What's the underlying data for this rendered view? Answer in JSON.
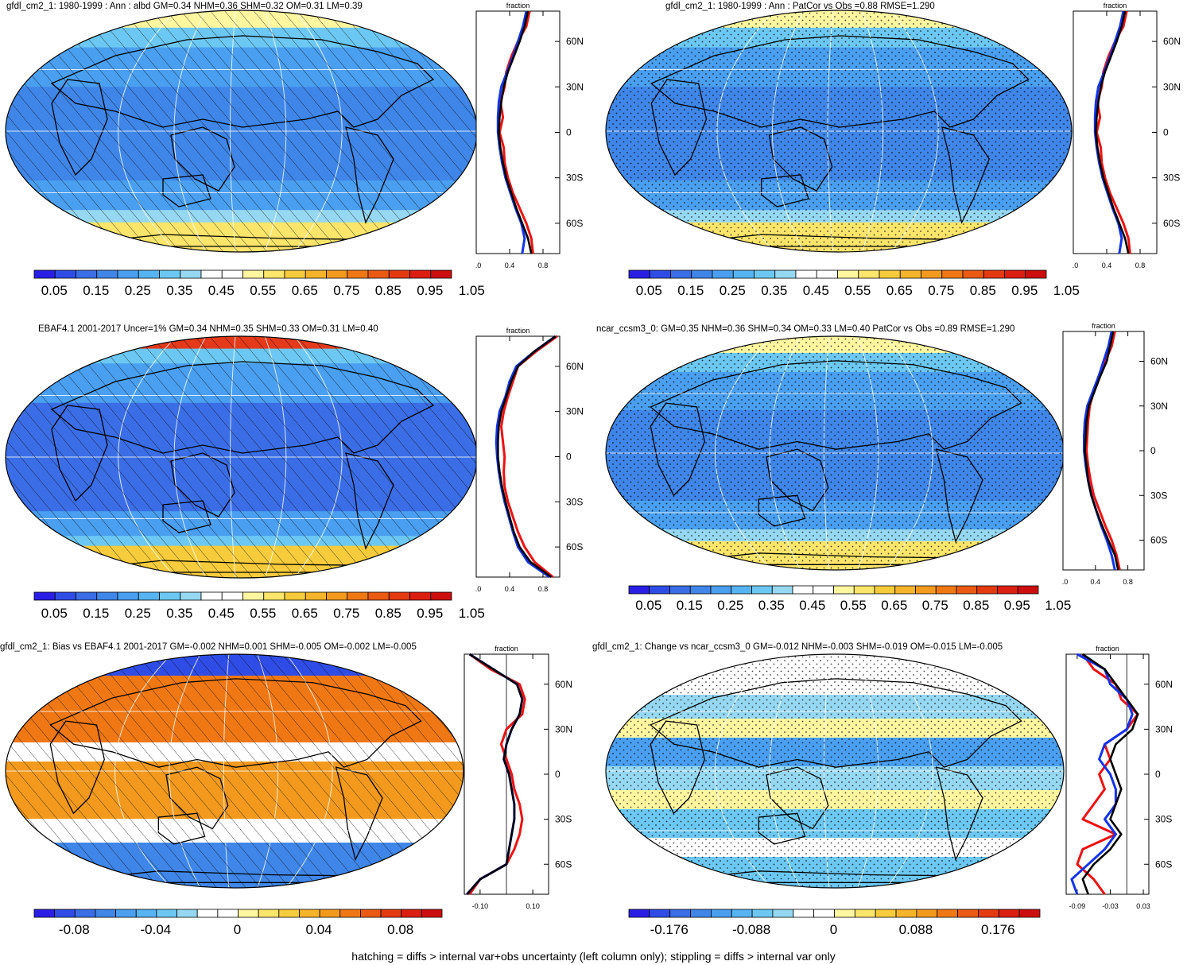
{
  "panels": [
    {
      "id": "p1",
      "title": "gfdl_cm2_1: 1980-1999 : Ann : albd GM=0.34 NHM=0.36 SHM=0.32 OM=0.31 LM=0.39",
      "pattern": "hatch",
      "scheme": "abs",
      "colorbar": [
        "0.05",
        "0.15",
        "0.25",
        "0.35",
        "0.45",
        "0.55",
        "0.65",
        "0.75",
        "0.85",
        "0.95",
        "1.05"
      ],
      "profile_title": "fraction",
      "profile_xticks": [
        "0.0",
        "0.4",
        "0.8"
      ],
      "lat_ticks": [
        "60N",
        "30N",
        "0",
        "30S",
        "60S"
      ]
    },
    {
      "id": "p2",
      "title": "gfdl_cm2_1: 1980-1999 : Ann : PatCor vs Obs =0.88 RMSE=1.290",
      "pattern": "stipple",
      "scheme": "abs",
      "colorbar": [
        "0.05",
        "0.15",
        "0.25",
        "0.35",
        "0.45",
        "0.55",
        "0.65",
        "0.75",
        "0.85",
        "0.95",
        "1.05"
      ],
      "profile_title": "fraction",
      "profile_xticks": [
        "0.0",
        "0.4",
        "0.8"
      ],
      "lat_ticks": [
        "60N",
        "30N",
        "0",
        "30S",
        "60S"
      ]
    },
    {
      "id": "p3",
      "title": "EBAF4.1 2001-2017 Uncer=1% GM=0.34 NHM=0.35 SHM=0.33 OM=0.31 LM=0.40",
      "pattern": "hatch",
      "scheme": "abs",
      "colorbar": [
        "0.05",
        "0.15",
        "0.25",
        "0.35",
        "0.45",
        "0.55",
        "0.65",
        "0.75",
        "0.85",
        "0.95",
        "1.05"
      ],
      "profile_title": "fraction",
      "profile_xticks": [
        "0.0",
        "0.4",
        "0.8"
      ],
      "lat_ticks": [
        "60N",
        "30N",
        "0",
        "30S",
        "60S"
      ]
    },
    {
      "id": "p4",
      "title": "ncar_ccsm3_0: GM=0.35 NHM=0.36 SHM=0.34 OM=0.33 LM=0.40 PatCor vs Obs =0.89 RMSE=1.290",
      "pattern": "stipple",
      "scheme": "abs",
      "colorbar": [
        "0.05",
        "0.15",
        "0.25",
        "0.35",
        "0.45",
        "0.55",
        "0.65",
        "0.75",
        "0.85",
        "0.95",
        "1.05"
      ],
      "profile_title": "fraction",
      "profile_xticks": [
        "0.0",
        "0.4",
        "0.8"
      ],
      "lat_ticks": [
        "60N",
        "30N",
        "0",
        "30S",
        "60S"
      ]
    },
    {
      "id": "p5",
      "title": "gfdl_cm2_1: Bias vs EBAF4.1 2001-2017 GM=-0.002 NHM=0.001 SHM=-0.005 OM=-0.002 LM=-0.005",
      "pattern": "hatch",
      "scheme": "bias",
      "colorbar": [
        "-0.08",
        "-0.04",
        "0",
        "0.04",
        "0.08"
      ],
      "profile_title": "fraction",
      "profile_xticks": [
        "-0.10",
        "0.10"
      ],
      "lat_ticks": [
        "60N",
        "30N",
        "0",
        "30S",
        "60S"
      ]
    },
    {
      "id": "p6",
      "title": "gfdl_cm2_1: Change vs ncar_ccsm3_0 GM=-0.012 NHM=-0.003 SHM=-0.019 OM=-0.015 LM=-0.005",
      "pattern": "stipple",
      "scheme": "change",
      "colorbar": [
        "-0.176",
        "-0.088",
        "0",
        "0.088",
        "0.176"
      ],
      "profile_title": "fraction",
      "profile_xticks": [
        "-0.09",
        "-0.03",
        "0.03"
      ],
      "lat_ticks": [
        "60N",
        "30N",
        "0",
        "30S",
        "60S"
      ]
    }
  ],
  "palettes": {
    "abs": [
      "#2a1ee6",
      "#2f4de6",
      "#3b6ee6",
      "#3f86e8",
      "#4a9ff0",
      "#56b4f2",
      "#6cc8f2",
      "#96d8f2",
      "#ffffff",
      "#ffffff",
      "#fff7a0",
      "#fbe56a",
      "#f7cc3c",
      "#f5b42a",
      "#f39a1e",
      "#f07814",
      "#ea5a12",
      "#e43a10",
      "#dc1e10",
      "#cc0e0e"
    ],
    "bias": [
      "#2a1ee6",
      "#2f4de6",
      "#3b6ee6",
      "#3f86e8",
      "#4a9ff0",
      "#56b4f2",
      "#6cc8f2",
      "#96d8f2",
      "#ffffff",
      "#ffffff",
      "#fff7a0",
      "#fbe56a",
      "#f7cc3c",
      "#f5b42a",
      "#f39a1e",
      "#f07814",
      "#ea5a12",
      "#e43a10",
      "#dc1e10",
      "#cc0e0e"
    ],
    "change": [
      "#2a1ee6",
      "#2f4de6",
      "#3b6ee6",
      "#3f86e8",
      "#4a9ff0",
      "#56b4f2",
      "#6cc8f2",
      "#96d8f2",
      "#ffffff",
      "#ffffff",
      "#fff7a0",
      "#fbe56a",
      "#f7cc3c",
      "#f5b42a",
      "#f39a1e",
      "#f07814",
      "#ea5a12",
      "#e43a10",
      "#dc1e10",
      "#cc0e0e"
    ]
  },
  "profile_series": {
    "lats": [
      80,
      70,
      60,
      50,
      40,
      30,
      20,
      10,
      0,
      -10,
      -20,
      -30,
      -40,
      -50,
      -60,
      -70,
      -80
    ],
    "p1": {
      "black": [
        0.62,
        0.58,
        0.52,
        0.45,
        0.38,
        0.33,
        0.3,
        0.28,
        0.27,
        0.29,
        0.32,
        0.36,
        0.42,
        0.48,
        0.55,
        0.62,
        0.66
      ],
      "red": [
        0.64,
        0.6,
        0.5,
        0.42,
        0.36,
        0.34,
        0.29,
        0.32,
        0.28,
        0.33,
        0.34,
        0.38,
        0.44,
        0.52,
        0.6,
        0.66,
        0.68
      ],
      "blue": [
        0.6,
        0.56,
        0.5,
        0.44,
        0.37,
        0.3,
        0.27,
        0.26,
        0.26,
        0.28,
        0.31,
        0.35,
        0.41,
        0.47,
        0.54,
        0.58,
        0.55
      ]
    },
    "p2": {
      "black": [
        0.62,
        0.58,
        0.52,
        0.45,
        0.38,
        0.33,
        0.3,
        0.28,
        0.27,
        0.29,
        0.32,
        0.36,
        0.42,
        0.48,
        0.55,
        0.62,
        0.66
      ],
      "red": [
        0.64,
        0.6,
        0.5,
        0.42,
        0.36,
        0.34,
        0.29,
        0.32,
        0.28,
        0.33,
        0.34,
        0.38,
        0.44,
        0.52,
        0.6,
        0.66,
        0.68
      ],
      "blue": [
        0.6,
        0.56,
        0.5,
        0.44,
        0.37,
        0.3,
        0.27,
        0.26,
        0.26,
        0.28,
        0.31,
        0.35,
        0.41,
        0.47,
        0.54,
        0.58,
        0.55
      ]
    },
    "p3": {
      "black": [
        0.95,
        0.7,
        0.5,
        0.42,
        0.36,
        0.3,
        0.27,
        0.26,
        0.26,
        0.28,
        0.31,
        0.35,
        0.4,
        0.45,
        0.52,
        0.65,
        0.9
      ],
      "red": [
        0.97,
        0.72,
        0.5,
        0.44,
        0.38,
        0.33,
        0.3,
        0.32,
        0.34,
        0.33,
        0.34,
        0.38,
        0.44,
        0.5,
        0.58,
        0.7,
        0.92
      ],
      "blue": [
        0.95,
        0.7,
        0.48,
        0.4,
        0.35,
        0.28,
        0.25,
        0.24,
        0.25,
        0.27,
        0.3,
        0.34,
        0.39,
        0.44,
        0.5,
        0.62,
        0.88
      ]
    },
    "p4": {
      "black": [
        0.62,
        0.58,
        0.54,
        0.46,
        0.39,
        0.32,
        0.29,
        0.28,
        0.27,
        0.29,
        0.31,
        0.35,
        0.41,
        0.48,
        0.56,
        0.64,
        0.68
      ],
      "red": [
        0.64,
        0.6,
        0.52,
        0.44,
        0.38,
        0.33,
        0.31,
        0.3,
        0.29,
        0.31,
        0.34,
        0.38,
        0.45,
        0.52,
        0.6,
        0.66,
        0.7
      ],
      "blue": [
        0.6,
        0.56,
        0.5,
        0.44,
        0.37,
        0.3,
        0.27,
        0.26,
        0.26,
        0.28,
        0.31,
        0.35,
        0.41,
        0.47,
        0.54,
        0.6,
        0.64
      ]
    },
    "p5": {
      "black": [
        -0.14,
        -0.05,
        0.04,
        0.06,
        0.05,
        0.02,
        0.0,
        -0.01,
        0.01,
        0.02,
        0.03,
        0.03,
        0.02,
        0.01,
        0.0,
        -0.1,
        -0.15
      ],
      "red": [
        -0.14,
        -0.06,
        0.05,
        0.07,
        0.06,
        0.0,
        -0.02,
        0.0,
        0.02,
        0.03,
        0.05,
        0.06,
        0.05,
        0.03,
        0.0,
        -0.1,
        -0.14
      ],
      "blue": [
        -0.14,
        -0.05,
        0.04,
        0.06,
        0.05,
        0.02,
        0.0,
        -0.01,
        0.01,
        0.02,
        0.03,
        0.03,
        0.02,
        0.01,
        0.0,
        -0.1,
        -0.15
      ]
    },
    "p6": {
      "black": [
        -0.08,
        -0.04,
        -0.02,
        0.0,
        0.02,
        0.01,
        -0.02,
        -0.03,
        -0.02,
        -0.01,
        -0.02,
        -0.03,
        -0.01,
        -0.03,
        -0.06,
        -0.08,
        -0.07
      ],
      "red": [
        -0.08,
        -0.06,
        -0.02,
        -0.01,
        0.02,
        0.0,
        -0.04,
        -0.03,
        -0.05,
        -0.04,
        -0.06,
        -0.08,
        -0.02,
        -0.08,
        -0.09,
        -0.06,
        -0.04
      ],
      "blue": [
        -0.09,
        -0.04,
        -0.03,
        0.0,
        0.01,
        0.0,
        -0.04,
        -0.05,
        -0.03,
        -0.02,
        -0.02,
        -0.04,
        -0.02,
        -0.04,
        -0.07,
        -0.1,
        -0.09
      ]
    }
  },
  "footnote": "hatching = diffs > internal var+obs uncertainty (left column only); stippling = diffs > internal var only"
}
